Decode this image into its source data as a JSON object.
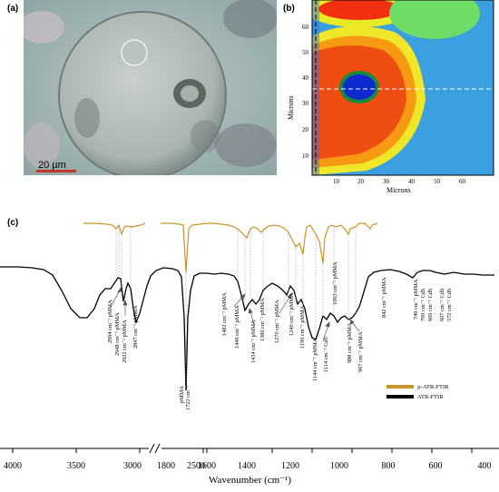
{
  "panels": {
    "a": "(a)",
    "b": "(b)",
    "c": "(c)"
  },
  "photo": {
    "scale_bar": "20 µm"
  },
  "map": {
    "xlabel": "Microns",
    "ylabel": "Microns",
    "xticks": [
      "10",
      "20",
      "30",
      "40",
      "50",
      "60"
    ],
    "yticks": [
      "10",
      "20",
      "30",
      "40",
      "50",
      "60"
    ]
  },
  "spectrum": {
    "xlabel": "Wavenumber (cm⁻¹)",
    "xticks": [
      "4000",
      "3500",
      "3000",
      "2500",
      "1800",
      "1600",
      "1400",
      "1200",
      "1000",
      "800",
      "600",
      "400"
    ],
    "legend": [
      {
        "name": "µ-ATR-FTIR",
        "color": "#c8952a"
      },
      {
        "name": "ATR-FTIR",
        "color": "#000000"
      }
    ],
    "annotations": {
      "a2994": "2994 cm⁻¹ pMMA",
      "a2948": "2948 cm⁻¹ pMMA",
      "a2922": "2922 cm⁻¹ pMMA",
      "a2847": "2847 cm⁻¹ pMMA",
      "a1722a": "pMMA",
      "a1722b": "1722 cm⁻¹",
      "a1482": "1482 cm⁻¹ pMMA",
      "a1446": "1446 cm⁻¹ pMMA",
      "a1434": "1434 cm⁻¹ pMMA",
      "a1386": "1386 cm⁻¹ pMMA",
      "a1270": "1270 cm⁻¹ pMMA",
      "a1240": "1240 cm⁻¹ pMMA",
      "a1190": "1190 cm⁻¹ pMMA",
      "a1144": "1144 cm⁻¹ pMMA",
      "a1114": "1114 cm⁻¹ CdS",
      "a1063": "1063 cm⁻¹ pMMA",
      "a988": "988 cm⁻¹ pMMA",
      "a967": "967 cm⁻¹ pMMA",
      "a842": "842 cm⁻¹ pMMA",
      "a749": "749 cm⁻¹ pMMA",
      "a700": "700 cm⁻¹ CdS",
      "a669": "669 cm⁻¹ CdS",
      "a607": "607 cm⁻¹ CdS",
      "a572": "572 cm⁻¹ CdS"
    }
  }
}
